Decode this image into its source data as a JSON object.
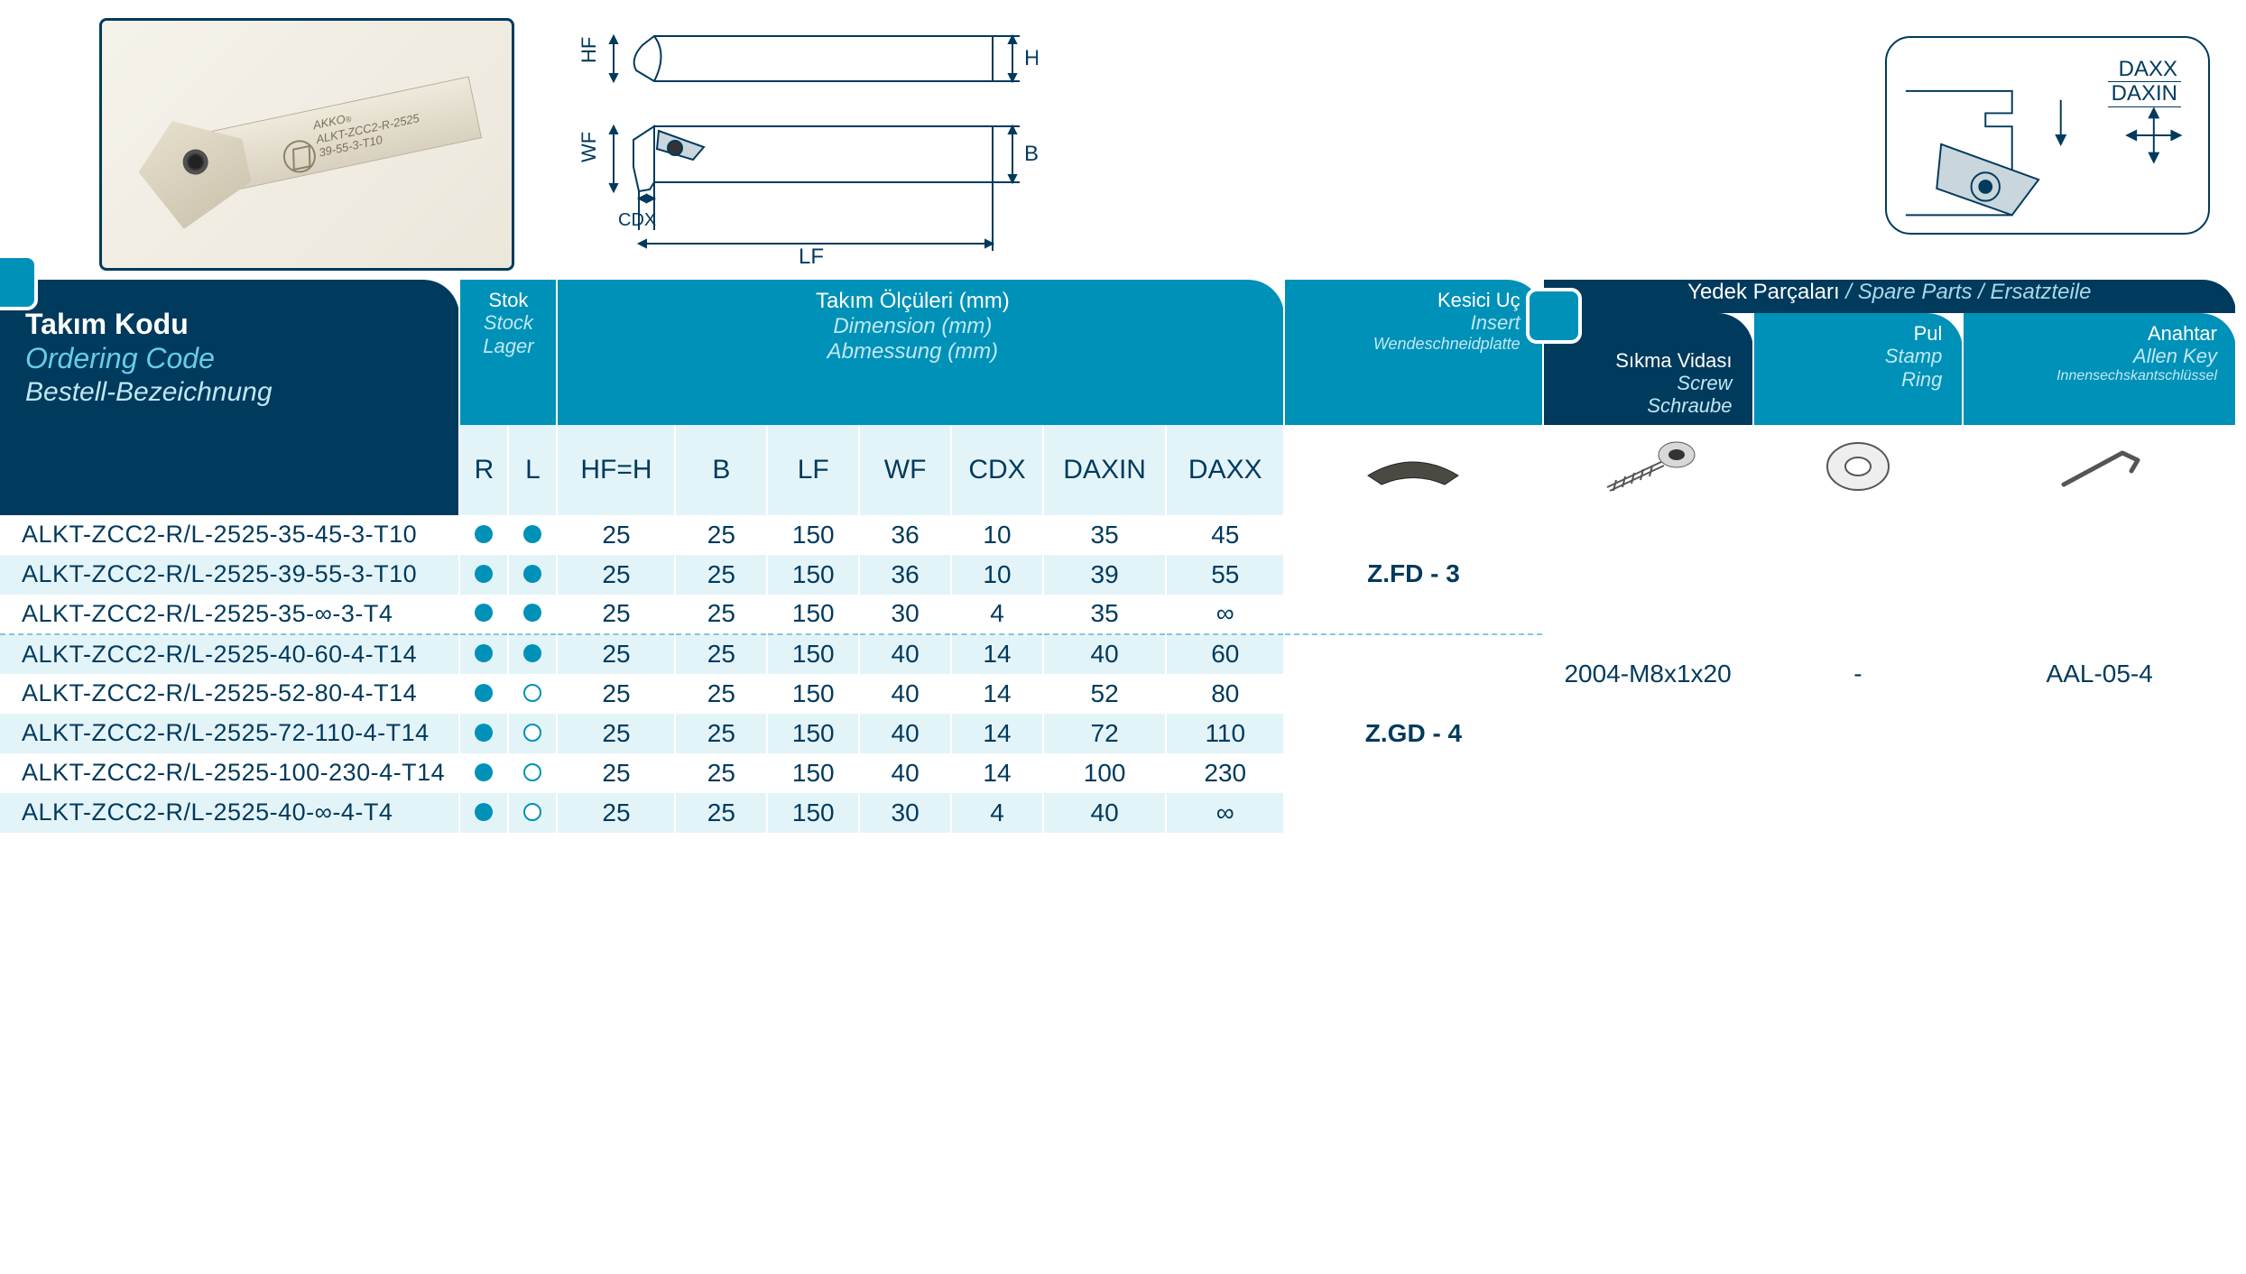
{
  "colors": {
    "deep": "#003a5d",
    "teal": "#0091b8",
    "band": "#e3f4f9",
    "bandAlt": "#ffffff",
    "lightTeal": "#66cde4",
    "textOnTeal": "#ffffff"
  },
  "photo": {
    "brand": "AKKO",
    "model_line1": "ALKT-ZCC2-R-2525",
    "model_line2": "39-55-3-T10"
  },
  "techLabels": {
    "HF": "HF",
    "H": "H",
    "WF": "WF",
    "B": "B",
    "CDX": "CDX",
    "LF": "LF",
    "DAXX": "DAXX",
    "DAXIN": "DAXIN"
  },
  "header": {
    "ordering": {
      "t1": "Takım Kodu",
      "t2": "Ordering Code",
      "t3": "Bestell-Bezeichnung"
    },
    "stock": {
      "s1": "Stok",
      "s2": "Stock",
      "s3": "Lager"
    },
    "dims": {
      "s1": "Takım Ölçüleri (mm)",
      "s2": "Dimension (mm)",
      "s3": "Abmessung (mm)"
    },
    "insert": {
      "s1": "Kesici Uç",
      "s2": "Insert",
      "s3": "Wendeschneidplatte"
    },
    "spareSuper": {
      "a": "Yedek Parçaları",
      "b": "Spare Parts",
      "c": "Ersatzteile"
    },
    "screw": {
      "s1": "Sıkma Vidası",
      "s2": "Screw",
      "s3": "Schraube"
    },
    "stamp": {
      "s1": "Pul",
      "s2": "Stamp",
      "s3": "Ring"
    },
    "key": {
      "s1": "Anahtar",
      "s2": "Allen Key",
      "s3": "Innensechskantschlüssel"
    }
  },
  "subheaders": {
    "R": "R",
    "L": "L",
    "HF_H": "HF=H",
    "B": "B",
    "LF": "LF",
    "WF": "WF",
    "CDX": "CDX",
    "DAXIN": "DAXIN",
    "DAXX": "DAXX"
  },
  "rows": [
    {
      "code": "ALKT-ZCC2-R/L-2525-35-45-3-T10",
      "r": "f",
      "l": "f",
      "hf": 25,
      "b": 25,
      "lf": 150,
      "wf": 36,
      "cdx": 10,
      "daxin": 35,
      "daxx": "45"
    },
    {
      "code": "ALKT-ZCC2-R/L-2525-39-55-3-T10",
      "r": "f",
      "l": "f",
      "hf": 25,
      "b": 25,
      "lf": 150,
      "wf": 36,
      "cdx": 10,
      "daxin": 39,
      "daxx": "55"
    },
    {
      "code": "ALKT-ZCC2-R/L-2525-35-∞-3-T4",
      "r": "f",
      "l": "f",
      "hf": 25,
      "b": 25,
      "lf": 150,
      "wf": 30,
      "cdx": 4,
      "daxin": 35,
      "daxx": "∞"
    },
    {
      "code": "ALKT-ZCC2-R/L-2525-40-60-4-T14",
      "r": "f",
      "l": "f",
      "hf": 25,
      "b": 25,
      "lf": 150,
      "wf": 40,
      "cdx": 14,
      "daxin": 40,
      "daxx": "60"
    },
    {
      "code": "ALKT-ZCC2-R/L-2525-52-80-4-T14",
      "r": "f",
      "l": "o",
      "hf": 25,
      "b": 25,
      "lf": 150,
      "wf": 40,
      "cdx": 14,
      "daxin": 52,
      "daxx": "80"
    },
    {
      "code": "ALKT-ZCC2-R/L-2525-72-110-4-T14",
      "r": "f",
      "l": "o",
      "hf": 25,
      "b": 25,
      "lf": 150,
      "wf": 40,
      "cdx": 14,
      "daxin": 72,
      "daxx": "110"
    },
    {
      "code": "ALKT-ZCC2-R/L-2525-100-230-4-T14",
      "r": "f",
      "l": "o",
      "hf": 25,
      "b": 25,
      "lf": 150,
      "wf": 40,
      "cdx": 14,
      "daxin": 100,
      "daxx": "230"
    },
    {
      "code": "ALKT-ZCC2-R/L-2525-40-∞-4-T4",
      "r": "f",
      "l": "o",
      "hf": 25,
      "b": 25,
      "lf": 150,
      "wf": 30,
      "cdx": 4,
      "daxin": 40,
      "daxx": "∞"
    }
  ],
  "groupSplit": 3,
  "inserts": {
    "g1": "Z.FD - 3",
    "g2": "Z.GD - 4"
  },
  "spares": {
    "screw": "2004-M8x1x20",
    "stamp": "-",
    "key": "AAL-05-4"
  }
}
